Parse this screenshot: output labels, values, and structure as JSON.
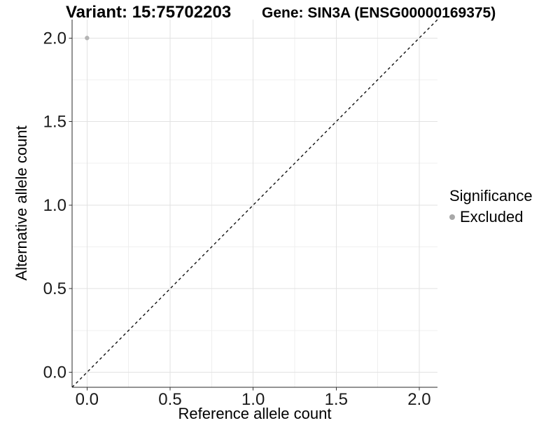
{
  "page": {
    "background": "#ffffff"
  },
  "chart_data": {
    "type": "scatter",
    "title_left": "Variant: 15:75702203",
    "title_right": "Gene: SIN3A (ENSG00000169375)",
    "xlabel": "Reference allele count",
    "ylabel": "Alternative allele count",
    "xlim": [
      -0.09,
      2.11
    ],
    "ylim": [
      -0.09,
      2.11
    ],
    "x_ticks": [
      0,
      0.5,
      1,
      1.5,
      2
    ],
    "y_ticks": [
      0,
      0.5,
      1,
      1.5,
      2
    ],
    "x_tick_labels": [
      "0.0",
      "0.5",
      "1.0",
      "1.5",
      "2.0"
    ],
    "y_tick_labels": [
      "0.0",
      "0.5",
      "1.0",
      "1.5",
      "2.0"
    ],
    "x_minor_ticks": [
      0.25,
      0.75,
      1.25,
      1.75
    ],
    "y_minor_ticks": [
      0.25,
      0.75,
      1.25,
      1.75
    ],
    "grid": "major+minor",
    "series": [
      {
        "name": "Excluded",
        "color": "#b5b5b5",
        "points": [
          {
            "x": 0,
            "y": 2
          }
        ]
      }
    ],
    "identity_line": {
      "slope": 1,
      "intercept": 0,
      "style": "dashed",
      "color": "#111111"
    },
    "legend": {
      "title": "Significance",
      "position": "right",
      "entries": [
        {
          "label": "Excluded",
          "marker_color": "#a8a8a8"
        }
      ]
    }
  },
  "colors": {
    "grid_major": "#e2e2e2",
    "grid_minor": "#efefef",
    "axis_line": "#2a2a2a",
    "tick_mark": "#333333",
    "tick_label": "#1a1a1a"
  }
}
